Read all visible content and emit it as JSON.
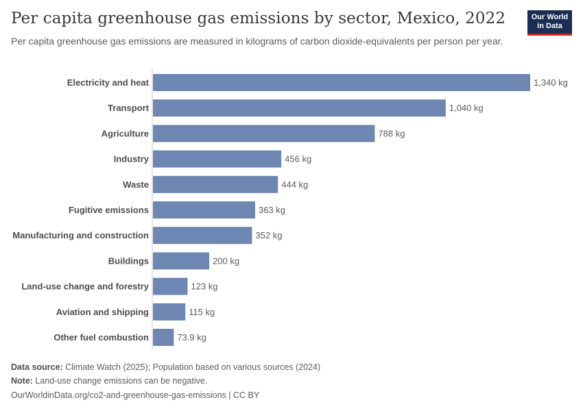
{
  "header": {
    "title": "Per capita greenhouse gas emissions by sector, Mexico, 2022",
    "subtitle": "Per capita greenhouse gas emissions are measured in kilograms of carbon dioxide-equivalents per person per year.",
    "logo_line1": "Our World",
    "logo_line2": "in Data"
  },
  "colors": {
    "bar": "#6d87b2",
    "axis": "#cccccc",
    "logo_bg": "#1a2e54",
    "logo_accent": "#ce261e"
  },
  "chart_data": {
    "type": "bar",
    "orientation": "horizontal",
    "categories": [
      "Electricity and heat",
      "Transport",
      "Agriculture",
      "Industry",
      "Waste",
      "Fugitive emissions",
      "Manufacturing and construction",
      "Buildings",
      "Land-use change and forestry",
      "Aviation and shipping",
      "Other fuel combustion"
    ],
    "values": [
      1340,
      1040,
      788,
      456,
      444,
      363,
      352,
      200,
      123,
      115,
      73.9
    ],
    "value_labels": [
      "1,340 kg",
      "1,040 kg",
      "788 kg",
      "456 kg",
      "444 kg",
      "363 kg",
      "352 kg",
      "200 kg",
      "123 kg",
      "115 kg",
      "73.9 kg"
    ],
    "unit": "kg",
    "xlim": [
      0,
      1340
    ],
    "grid": false,
    "legend": "none"
  },
  "footer": {
    "source_label": "Data source:",
    "source_text": " Climate Watch (2025); Population based on various sources (2024)",
    "note_label": "Note:",
    "note_text": " Land-use change emissions can be negative.",
    "url_text": "OurWorldinData.org/co2-and-greenhouse-gas-emissions | CC BY"
  }
}
